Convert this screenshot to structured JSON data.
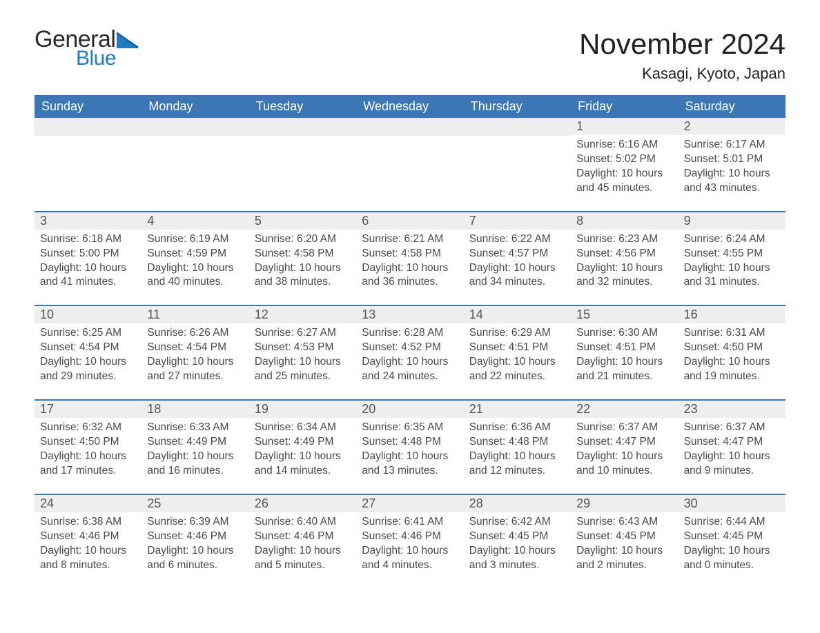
{
  "brand": {
    "line1": "General",
    "line2": "Blue"
  },
  "colors": {
    "header_blue": "#3b76b6",
    "brand_blue": "#1f7bc4",
    "daynum_bg": "#eeeeee",
    "rule_blue": "#3b76b6",
    "text_dark": "#333333",
    "background": "#ffffff"
  },
  "typography": {
    "title_fontsize": 42,
    "location_fontsize": 22,
    "weekday_fontsize": 18,
    "daynum_fontsize": 18,
    "body_fontsize": 15.5,
    "font_family": "Segoe UI"
  },
  "title": "November 2024",
  "location": "Kasagi, Kyoto, Japan",
  "weekdays": [
    "Sunday",
    "Monday",
    "Tuesday",
    "Wednesday",
    "Thursday",
    "Friday",
    "Saturday"
  ],
  "labels": {
    "sunrise_prefix": "Sunrise: ",
    "sunset_prefix": "Sunset: ",
    "daylight_prefix": "Daylight: "
  },
  "weeks": [
    [
      null,
      null,
      null,
      null,
      null,
      {
        "day": "1",
        "sunrise": "6:16 AM",
        "sunset": "5:02 PM",
        "daylight": "10 hours and 45 minutes."
      },
      {
        "day": "2",
        "sunrise": "6:17 AM",
        "sunset": "5:01 PM",
        "daylight": "10 hours and 43 minutes."
      }
    ],
    [
      {
        "day": "3",
        "sunrise": "6:18 AM",
        "sunset": "5:00 PM",
        "daylight": "10 hours and 41 minutes."
      },
      {
        "day": "4",
        "sunrise": "6:19 AM",
        "sunset": "4:59 PM",
        "daylight": "10 hours and 40 minutes."
      },
      {
        "day": "5",
        "sunrise": "6:20 AM",
        "sunset": "4:58 PM",
        "daylight": "10 hours and 38 minutes."
      },
      {
        "day": "6",
        "sunrise": "6:21 AM",
        "sunset": "4:58 PM",
        "daylight": "10 hours and 36 minutes."
      },
      {
        "day": "7",
        "sunrise": "6:22 AM",
        "sunset": "4:57 PM",
        "daylight": "10 hours and 34 minutes."
      },
      {
        "day": "8",
        "sunrise": "6:23 AM",
        "sunset": "4:56 PM",
        "daylight": "10 hours and 32 minutes."
      },
      {
        "day": "9",
        "sunrise": "6:24 AM",
        "sunset": "4:55 PM",
        "daylight": "10 hours and 31 minutes."
      }
    ],
    [
      {
        "day": "10",
        "sunrise": "6:25 AM",
        "sunset": "4:54 PM",
        "daylight": "10 hours and 29 minutes."
      },
      {
        "day": "11",
        "sunrise": "6:26 AM",
        "sunset": "4:54 PM",
        "daylight": "10 hours and 27 minutes."
      },
      {
        "day": "12",
        "sunrise": "6:27 AM",
        "sunset": "4:53 PM",
        "daylight": "10 hours and 25 minutes."
      },
      {
        "day": "13",
        "sunrise": "6:28 AM",
        "sunset": "4:52 PM",
        "daylight": "10 hours and 24 minutes."
      },
      {
        "day": "14",
        "sunrise": "6:29 AM",
        "sunset": "4:51 PM",
        "daylight": "10 hours and 22 minutes."
      },
      {
        "day": "15",
        "sunrise": "6:30 AM",
        "sunset": "4:51 PM",
        "daylight": "10 hours and 21 minutes."
      },
      {
        "day": "16",
        "sunrise": "6:31 AM",
        "sunset": "4:50 PM",
        "daylight": "10 hours and 19 minutes."
      }
    ],
    [
      {
        "day": "17",
        "sunrise": "6:32 AM",
        "sunset": "4:50 PM",
        "daylight": "10 hours and 17 minutes."
      },
      {
        "day": "18",
        "sunrise": "6:33 AM",
        "sunset": "4:49 PM",
        "daylight": "10 hours and 16 minutes."
      },
      {
        "day": "19",
        "sunrise": "6:34 AM",
        "sunset": "4:49 PM",
        "daylight": "10 hours and 14 minutes."
      },
      {
        "day": "20",
        "sunrise": "6:35 AM",
        "sunset": "4:48 PM",
        "daylight": "10 hours and 13 minutes."
      },
      {
        "day": "21",
        "sunrise": "6:36 AM",
        "sunset": "4:48 PM",
        "daylight": "10 hours and 12 minutes."
      },
      {
        "day": "22",
        "sunrise": "6:37 AM",
        "sunset": "4:47 PM",
        "daylight": "10 hours and 10 minutes."
      },
      {
        "day": "23",
        "sunrise": "6:37 AM",
        "sunset": "4:47 PM",
        "daylight": "10 hours and 9 minutes."
      }
    ],
    [
      {
        "day": "24",
        "sunrise": "6:38 AM",
        "sunset": "4:46 PM",
        "daylight": "10 hours and 8 minutes."
      },
      {
        "day": "25",
        "sunrise": "6:39 AM",
        "sunset": "4:46 PM",
        "daylight": "10 hours and 6 minutes."
      },
      {
        "day": "26",
        "sunrise": "6:40 AM",
        "sunset": "4:46 PM",
        "daylight": "10 hours and 5 minutes."
      },
      {
        "day": "27",
        "sunrise": "6:41 AM",
        "sunset": "4:46 PM",
        "daylight": "10 hours and 4 minutes."
      },
      {
        "day": "28",
        "sunrise": "6:42 AM",
        "sunset": "4:45 PM",
        "daylight": "10 hours and 3 minutes."
      },
      {
        "day": "29",
        "sunrise": "6:43 AM",
        "sunset": "4:45 PM",
        "daylight": "10 hours and 2 minutes."
      },
      {
        "day": "30",
        "sunrise": "6:44 AM",
        "sunset": "4:45 PM",
        "daylight": "10 hours and 0 minutes."
      }
    ]
  ]
}
